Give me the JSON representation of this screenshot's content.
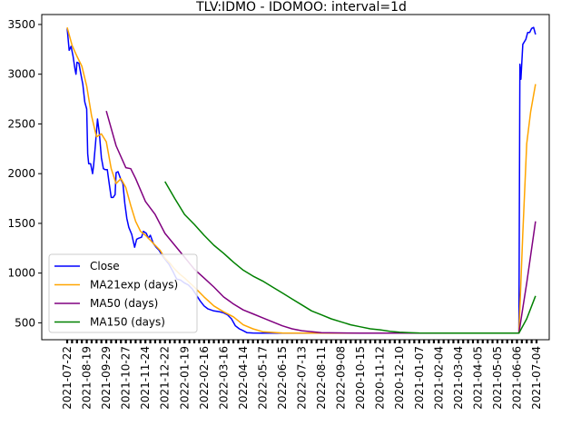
{
  "chart_data": {
    "type": "line",
    "title": "TLV:IDMO - IDOMOO: interval=1d",
    "xlabel": "",
    "ylabel": "",
    "ylim": [
      330,
      3600
    ],
    "y_ticks": [
      500,
      1000,
      1500,
      2000,
      2500,
      3000,
      3500
    ],
    "x_categories": [
      "2021-07-22",
      "2021-08-19",
      "2021-09-29",
      "2021-10-27",
      "2021-11-24",
      "2021-12-22",
      "2022-01-19",
      "2022-02-16",
      "2022-03-16",
      "2022-04-14",
      "2022-05-17",
      "2022-06-15",
      "2022-07-13",
      "2022-08-11",
      "2022-09-08",
      "2020-10-15",
      "2020-11-12",
      "2020-12-10",
      "2021-01-07",
      "2021-02-04",
      "2021-03-04",
      "2021-04-05",
      "2021-05-05",
      "2021-06-06",
      "2021-07-04"
    ],
    "legend_position": "lower left",
    "grid": false,
    "series": [
      {
        "name": "Close",
        "color": "#0000ff",
        "points": [
          [
            0.0,
            3460
          ],
          [
            0.1,
            3240
          ],
          [
            0.2,
            3280
          ],
          [
            0.3,
            3180
          ],
          [
            0.4,
            3050
          ],
          [
            0.45,
            3000
          ],
          [
            0.5,
            3120
          ],
          [
            0.6,
            3110
          ],
          [
            0.7,
            3000
          ],
          [
            0.8,
            2900
          ],
          [
            0.9,
            2720
          ],
          [
            1.0,
            2650
          ],
          [
            1.05,
            2200
          ],
          [
            1.1,
            2100
          ],
          [
            1.2,
            2100
          ],
          [
            1.3,
            2000
          ],
          [
            1.35,
            2080
          ],
          [
            1.45,
            2300
          ],
          [
            1.55,
            2550
          ],
          [
            1.65,
            2400
          ],
          [
            1.75,
            2160
          ],
          [
            1.85,
            2050
          ],
          [
            1.95,
            2040
          ],
          [
            2.05,
            2040
          ],
          [
            2.15,
            1900
          ],
          [
            2.25,
            1760
          ],
          [
            2.35,
            1760
          ],
          [
            2.45,
            1790
          ],
          [
            2.5,
            2010
          ],
          [
            2.6,
            2020
          ],
          [
            2.75,
            1940
          ],
          [
            2.85,
            1900
          ],
          [
            2.95,
            1700
          ],
          [
            3.05,
            1550
          ],
          [
            3.15,
            1460
          ],
          [
            3.3,
            1390
          ],
          [
            3.45,
            1260
          ],
          [
            3.55,
            1340
          ],
          [
            3.65,
            1350
          ],
          [
            3.8,
            1360
          ],
          [
            3.9,
            1420
          ],
          [
            4.05,
            1400
          ],
          [
            4.15,
            1350
          ],
          [
            4.25,
            1380
          ],
          [
            4.4,
            1300
          ],
          [
            4.55,
            1260
          ],
          [
            4.7,
            1230
          ],
          [
            4.85,
            1180
          ],
          [
            5.0,
            1140
          ],
          [
            5.2,
            1090
          ],
          [
            5.4,
            1020
          ],
          [
            5.6,
            940
          ],
          [
            5.8,
            930
          ],
          [
            6.0,
            900
          ],
          [
            6.2,
            880
          ],
          [
            6.4,
            840
          ],
          [
            6.6,
            780
          ],
          [
            6.8,
            720
          ],
          [
            7.0,
            670
          ],
          [
            7.2,
            640
          ],
          [
            7.5,
            620
          ],
          [
            7.8,
            610
          ],
          [
            8.0,
            600
          ],
          [
            8.2,
            580
          ],
          [
            8.4,
            540
          ],
          [
            8.6,
            470
          ],
          [
            8.8,
            440
          ],
          [
            9.0,
            420
          ],
          [
            9.2,
            400
          ],
          [
            9.5,
            398
          ],
          [
            10.0,
            396
          ],
          [
            15.0,
            396
          ],
          [
            22.0,
            396
          ],
          [
            23.1,
            396
          ],
          [
            23.15,
            3100
          ],
          [
            23.2,
            2950
          ],
          [
            23.3,
            3300
          ],
          [
            23.45,
            3350
          ],
          [
            23.55,
            3420
          ],
          [
            23.65,
            3420
          ],
          [
            23.75,
            3460
          ],
          [
            23.85,
            3470
          ],
          [
            23.95,
            3400
          ]
        ]
      },
      {
        "name": "MA21exp (days)",
        "color": "#ffa500",
        "points": [
          [
            0.0,
            3470
          ],
          [
            0.25,
            3290
          ],
          [
            0.5,
            3180
          ],
          [
            0.75,
            3080
          ],
          [
            1.0,
            2880
          ],
          [
            1.25,
            2580
          ],
          [
            1.5,
            2370
          ],
          [
            1.75,
            2400
          ],
          [
            2.0,
            2320
          ],
          [
            2.25,
            2050
          ],
          [
            2.5,
            1900
          ],
          [
            2.75,
            1950
          ],
          [
            3.0,
            1860
          ],
          [
            3.25,
            1680
          ],
          [
            3.5,
            1520
          ],
          [
            3.75,
            1420
          ],
          [
            4.0,
            1380
          ],
          [
            4.25,
            1330
          ],
          [
            4.5,
            1280
          ],
          [
            4.75,
            1230
          ],
          [
            5.0,
            1150
          ],
          [
            5.25,
            1100
          ],
          [
            5.5,
            1040
          ],
          [
            5.75,
            990
          ],
          [
            6.0,
            950
          ],
          [
            6.5,
            860
          ],
          [
            7.0,
            760
          ],
          [
            7.5,
            670
          ],
          [
            8.0,
            610
          ],
          [
            8.5,
            560
          ],
          [
            9.0,
            480
          ],
          [
            9.5,
            440
          ],
          [
            10.0,
            410
          ],
          [
            11.0,
            398
          ],
          [
            15.0,
            396
          ],
          [
            22.0,
            396
          ],
          [
            23.1,
            396
          ],
          [
            23.3,
            1400
          ],
          [
            23.5,
            2300
          ],
          [
            23.7,
            2620
          ],
          [
            23.95,
            2900
          ]
        ]
      },
      {
        "name": "MA50 (days)",
        "color": "#800080",
        "points": [
          [
            2.0,
            2630
          ],
          [
            2.5,
            2280
          ],
          [
            3.0,
            2060
          ],
          [
            3.25,
            2050
          ],
          [
            3.5,
            1950
          ],
          [
            4.0,
            1720
          ],
          [
            4.5,
            1590
          ],
          [
            5.0,
            1400
          ],
          [
            5.5,
            1280
          ],
          [
            6.0,
            1160
          ],
          [
            6.5,
            1040
          ],
          [
            7.0,
            950
          ],
          [
            7.5,
            860
          ],
          [
            8.0,
            760
          ],
          [
            8.5,
            690
          ],
          [
            9.0,
            630
          ],
          [
            9.5,
            590
          ],
          [
            10.0,
            550
          ],
          [
            10.5,
            510
          ],
          [
            11.0,
            470
          ],
          [
            11.5,
            440
          ],
          [
            12.0,
            420
          ],
          [
            13.0,
            400
          ],
          [
            15.0,
            396
          ],
          [
            22.0,
            396
          ],
          [
            23.1,
            396
          ],
          [
            23.5,
            900
          ],
          [
            23.95,
            1520
          ]
        ]
      },
      {
        "name": "MA150 (days)",
        "color": "#008000",
        "points": [
          [
            5.0,
            1920
          ],
          [
            5.5,
            1750
          ],
          [
            6.0,
            1590
          ],
          [
            6.5,
            1490
          ],
          [
            7.0,
            1380
          ],
          [
            7.5,
            1280
          ],
          [
            8.0,
            1200
          ],
          [
            8.5,
            1110
          ],
          [
            9.0,
            1030
          ],
          [
            9.5,
            970
          ],
          [
            10.0,
            920
          ],
          [
            10.5,
            860
          ],
          [
            11.0,
            800
          ],
          [
            11.5,
            740
          ],
          [
            12.0,
            680
          ],
          [
            12.5,
            620
          ],
          [
            13.0,
            580
          ],
          [
            13.5,
            540
          ],
          [
            14.0,
            510
          ],
          [
            14.5,
            480
          ],
          [
            15.0,
            460
          ],
          [
            15.5,
            440
          ],
          [
            16.0,
            430
          ],
          [
            16.5,
            415
          ],
          [
            17.0,
            405
          ],
          [
            17.5,
            400
          ],
          [
            18.0,
            398
          ],
          [
            20.0,
            396
          ],
          [
            22.0,
            396
          ],
          [
            23.1,
            396
          ],
          [
            23.5,
            540
          ],
          [
            23.95,
            770
          ]
        ]
      }
    ]
  }
}
